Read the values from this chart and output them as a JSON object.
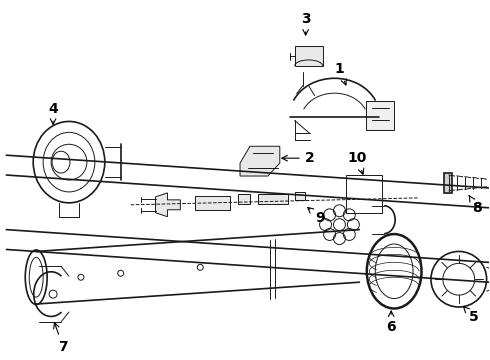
{
  "background_color": "#ffffff",
  "line_color": "#1a1a1a",
  "fig_width": 4.9,
  "fig_height": 3.6,
  "dpi": 100,
  "label_fontsize": 10,
  "components": {
    "upper_band_line1": [
      [
        0.02,
        0.7
      ],
      [
        0.99,
        0.88
      ]
    ],
    "upper_band_line2": [
      [
        0.02,
        0.62
      ],
      [
        0.99,
        0.8
      ]
    ],
    "lower_band_line1": [
      [
        0.02,
        0.46
      ],
      [
        0.99,
        0.64
      ]
    ],
    "lower_band_line2": [
      [
        0.02,
        0.38
      ],
      [
        0.99,
        0.56
      ]
    ]
  }
}
